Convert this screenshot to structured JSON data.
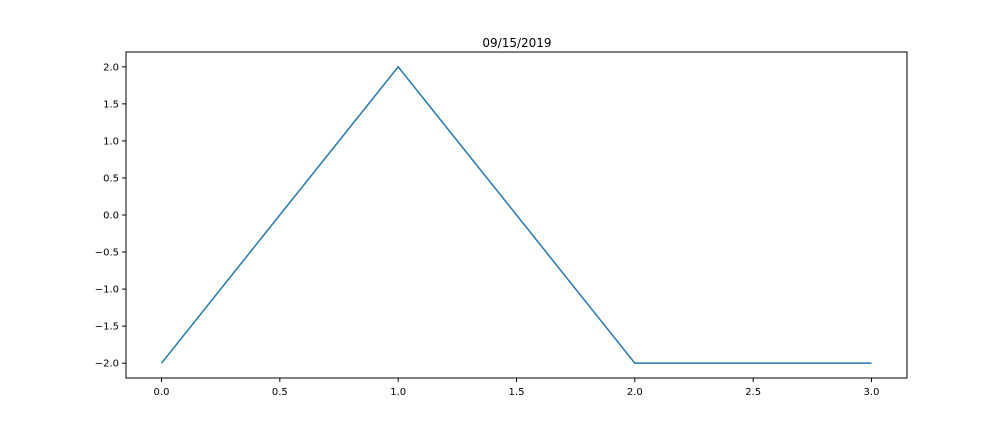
{
  "chart_data": {
    "type": "line",
    "title": "09/15/2019",
    "xlabel": "",
    "ylabel": "",
    "xlim": [
      -0.15,
      3.15
    ],
    "ylim": [
      -2.2,
      2.2
    ],
    "grid": false,
    "x_ticks": [
      0.0,
      0.5,
      1.0,
      1.5,
      2.0,
      2.5,
      3.0
    ],
    "x_tick_labels": [
      "0.0",
      "0.5",
      "1.0",
      "1.5",
      "2.0",
      "2.5",
      "3.0"
    ],
    "y_ticks": [
      2.0,
      1.5,
      1.0,
      0.5,
      0.0,
      -0.5,
      -1.0,
      -1.5,
      -2.0
    ],
    "y_tick_labels": [
      "2.0",
      "1.5",
      "1.0",
      "0.5",
      "0.0",
      "−0.5",
      "−1.0",
      "−1.5",
      "−2.0"
    ],
    "series": [
      {
        "color": "#1f77b4",
        "x": [
          0,
          1,
          2,
          3
        ],
        "y": [
          -2,
          2,
          -2,
          -2
        ]
      }
    ]
  }
}
